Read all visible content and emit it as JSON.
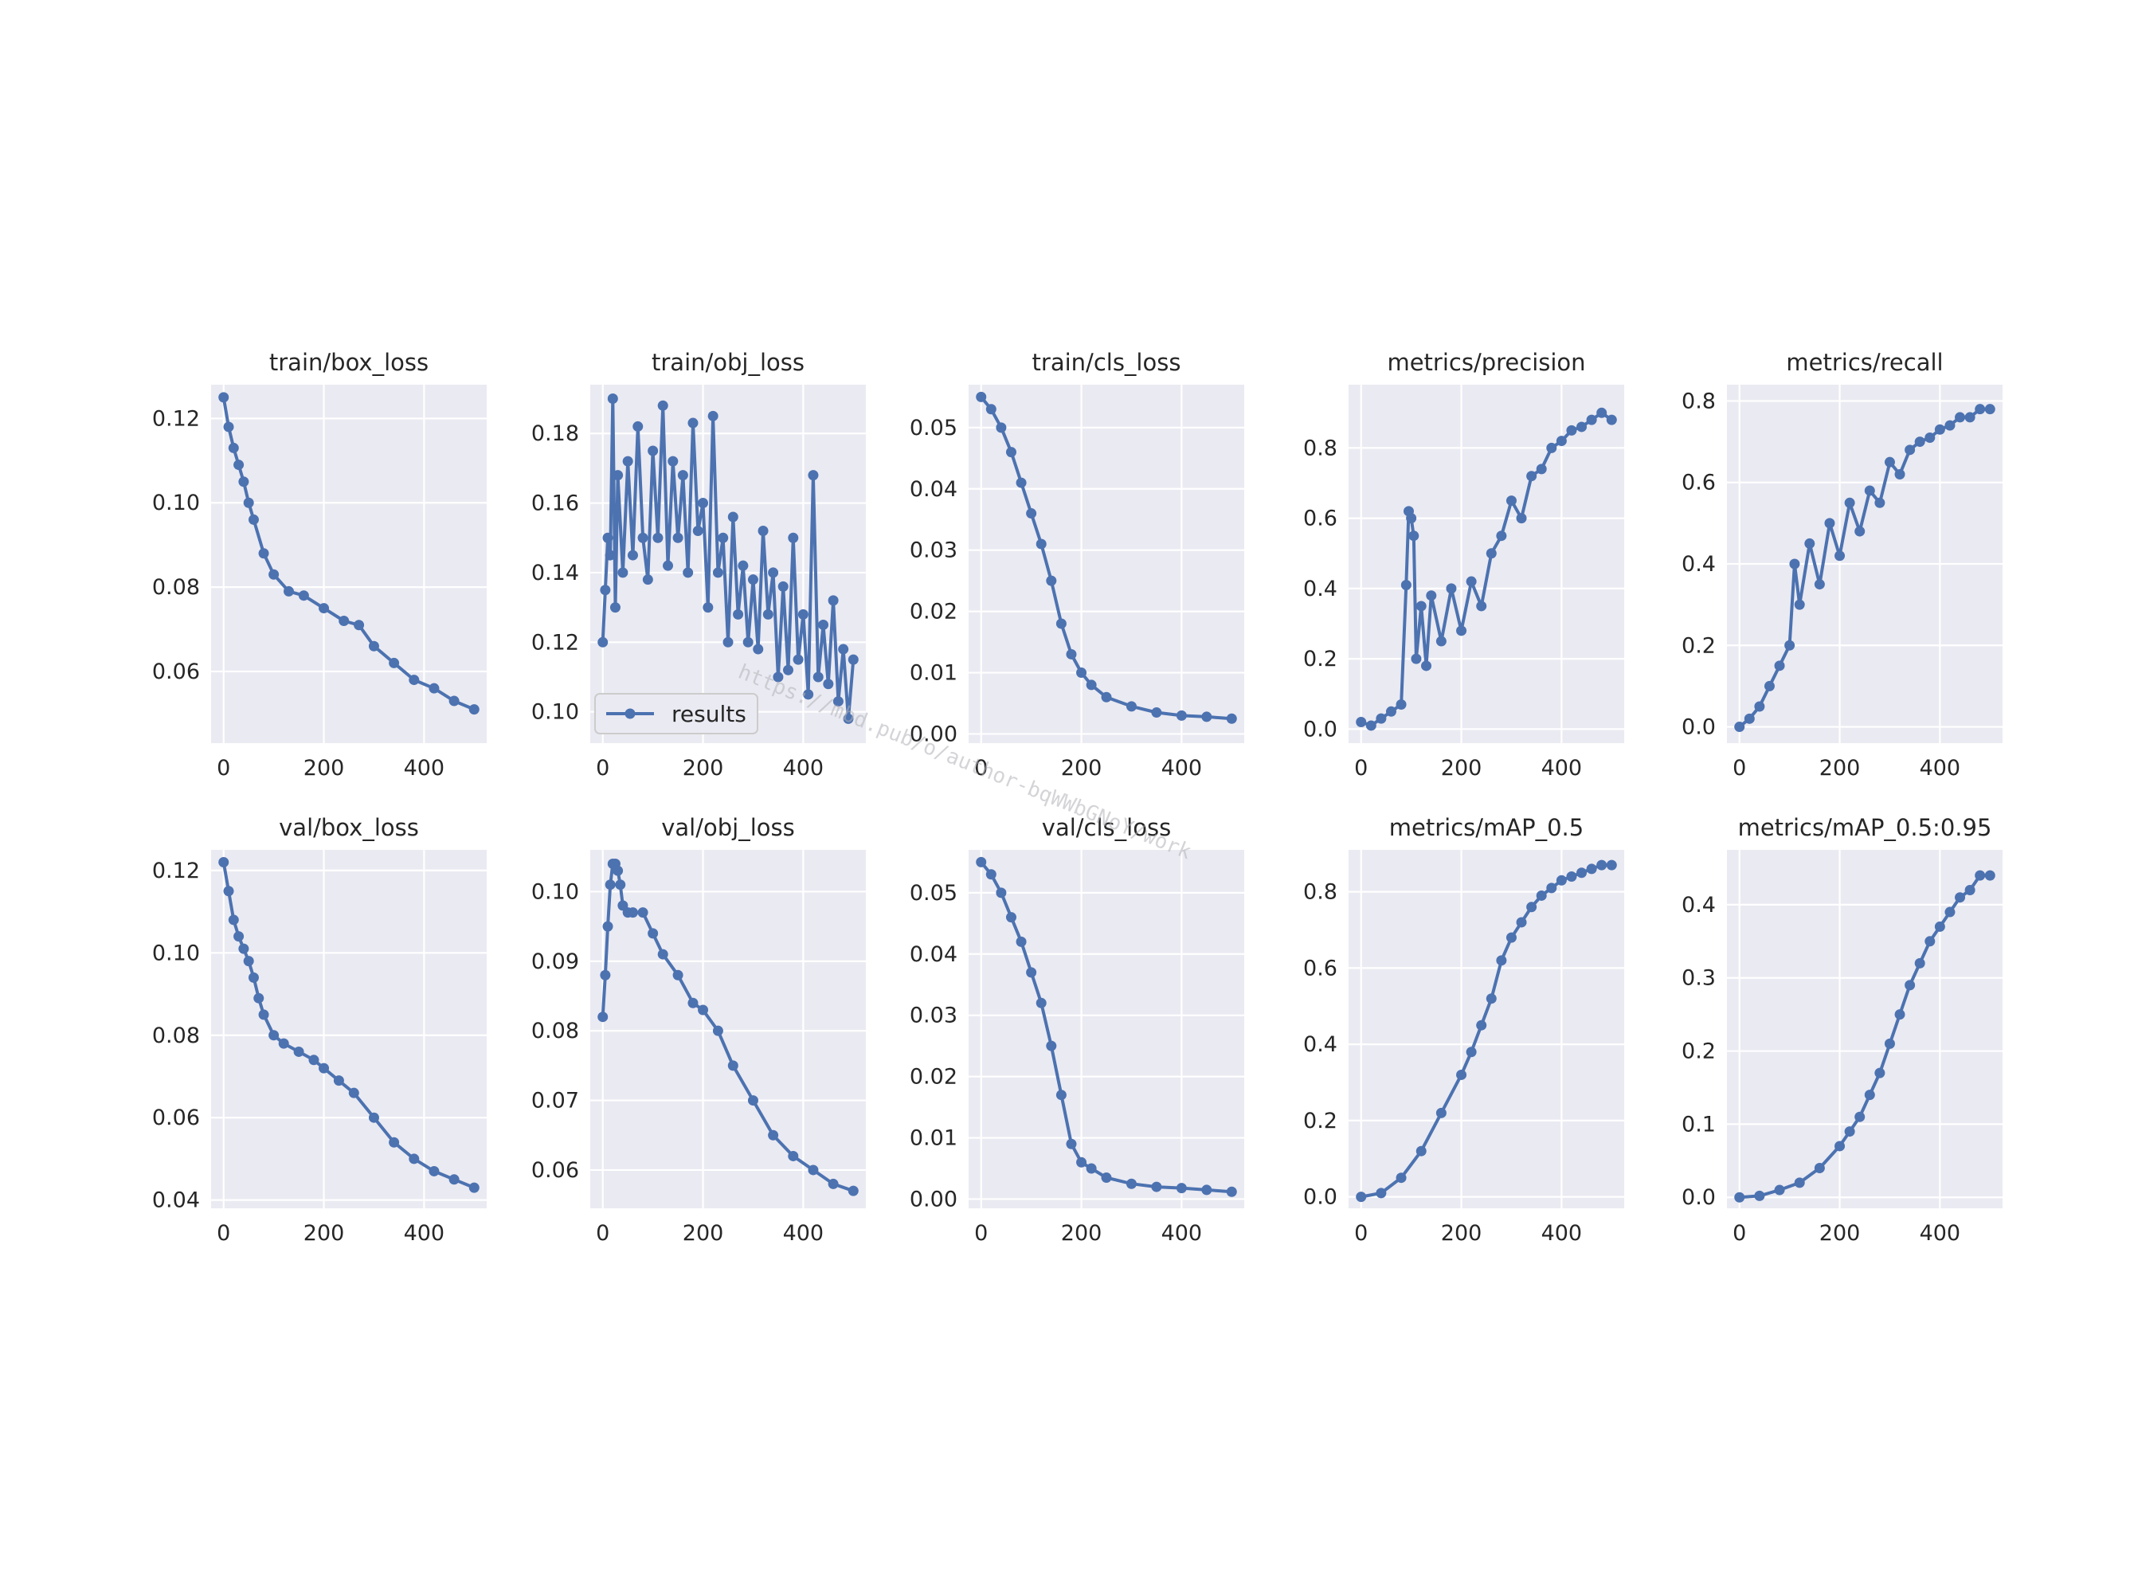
{
  "chart_data": [
    {
      "type": "line",
      "title": "train/box_loss",
      "x": [
        0,
        10,
        20,
        30,
        40,
        50,
        60,
        80,
        100,
        130,
        160,
        200,
        240,
        270,
        300,
        340,
        380,
        420,
        460,
        500
      ],
      "series": [
        {
          "name": "results",
          "values": [
            0.125,
            0.118,
            0.113,
            0.109,
            0.105,
            0.1,
            0.096,
            0.088,
            0.083,
            0.079,
            0.078,
            0.075,
            0.072,
            0.071,
            0.066,
            0.062,
            0.058,
            0.056,
            0.053,
            0.051
          ]
        }
      ],
      "xlim": [
        -25,
        525
      ],
      "ylim": [
        0.043,
        0.128
      ],
      "xticks": [
        0,
        200,
        400
      ],
      "xtick_labels": [
        "0",
        "200",
        "400"
      ],
      "yticks": [
        0.06,
        0.08,
        0.1,
        0.12
      ],
      "ytick_labels": [
        "0.06",
        "0.08",
        "0.10",
        "0.12"
      ],
      "grid": true
    },
    {
      "type": "line",
      "title": "train/obj_loss",
      "x": [
        0,
        5,
        10,
        15,
        20,
        25,
        30,
        40,
        50,
        60,
        70,
        80,
        90,
        100,
        110,
        120,
        130,
        140,
        150,
        160,
        170,
        180,
        190,
        200,
        210,
        220,
        230,
        240,
        250,
        260,
        270,
        280,
        290,
        300,
        310,
        320,
        330,
        340,
        350,
        360,
        370,
        380,
        390,
        400,
        410,
        420,
        430,
        440,
        450,
        460,
        470,
        480,
        490,
        500
      ],
      "series": [
        {
          "name": "results",
          "values": [
            0.12,
            0.135,
            0.15,
            0.145,
            0.19,
            0.13,
            0.168,
            0.14,
            0.172,
            0.145,
            0.182,
            0.15,
            0.138,
            0.175,
            0.15,
            0.188,
            0.142,
            0.172,
            0.15,
            0.168,
            0.14,
            0.183,
            0.152,
            0.16,
            0.13,
            0.185,
            0.14,
            0.15,
            0.12,
            0.156,
            0.128,
            0.142,
            0.12,
            0.138,
            0.118,
            0.152,
            0.128,
            0.14,
            0.11,
            0.136,
            0.112,
            0.15,
            0.115,
            0.128,
            0.105,
            0.168,
            0.11,
            0.125,
            0.108,
            0.132,
            0.103,
            0.118,
            0.098,
            0.115
          ]
        }
      ],
      "xlim": [
        -25,
        525
      ],
      "ylim": [
        0.091,
        0.194
      ],
      "xticks": [
        0,
        200,
        400
      ],
      "xtick_labels": [
        "0",
        "200",
        "400"
      ],
      "yticks": [
        0.1,
        0.12,
        0.14,
        0.16,
        0.18
      ],
      "ytick_labels": [
        "0.10",
        "0.12",
        "0.14",
        "0.16",
        "0.18"
      ],
      "grid": true,
      "legend": {
        "position": "lower-left",
        "label": "results"
      }
    },
    {
      "type": "line",
      "title": "train/cls_loss",
      "x": [
        0,
        20,
        40,
        60,
        80,
        100,
        120,
        140,
        160,
        180,
        200,
        220,
        250,
        300,
        350,
        400,
        450,
        500
      ],
      "series": [
        {
          "name": "results",
          "values": [
            0.055,
            0.053,
            0.05,
            0.046,
            0.041,
            0.036,
            0.031,
            0.025,
            0.018,
            0.013,
            0.01,
            0.008,
            0.006,
            0.0045,
            0.0035,
            0.003,
            0.0028,
            0.0025
          ]
        }
      ],
      "xlim": [
        -25,
        525
      ],
      "ylim": [
        -0.0015,
        0.057
      ],
      "xticks": [
        0,
        200,
        400
      ],
      "xtick_labels": [
        "0",
        "200",
        "400"
      ],
      "yticks": [
        0.0,
        0.01,
        0.02,
        0.03,
        0.04,
        0.05
      ],
      "ytick_labels": [
        "0.00",
        "0.01",
        "0.02",
        "0.03",
        "0.04",
        "0.05"
      ],
      "grid": true
    },
    {
      "type": "line",
      "title": "metrics/precision",
      "x": [
        0,
        20,
        40,
        60,
        80,
        90,
        95,
        100,
        105,
        110,
        120,
        130,
        140,
        160,
        180,
        200,
        220,
        240,
        260,
        280,
        300,
        320,
        340,
        360,
        380,
        400,
        420,
        440,
        460,
        480,
        500
      ],
      "series": [
        {
          "name": "results",
          "values": [
            0.02,
            0.01,
            0.03,
            0.05,
            0.07,
            0.41,
            0.62,
            0.6,
            0.55,
            0.2,
            0.35,
            0.18,
            0.38,
            0.25,
            0.4,
            0.28,
            0.42,
            0.35,
            0.5,
            0.55,
            0.65,
            0.6,
            0.72,
            0.74,
            0.8,
            0.82,
            0.85,
            0.86,
            0.88,
            0.9,
            0.88
          ]
        }
      ],
      "xlim": [
        -25,
        525
      ],
      "ylim": [
        -0.04,
        0.98
      ],
      "xticks": [
        0,
        200,
        400
      ],
      "xtick_labels": [
        "0",
        "200",
        "400"
      ],
      "yticks": [
        0.0,
        0.2,
        0.4,
        0.6,
        0.8
      ],
      "ytick_labels": [
        "0.0",
        "0.2",
        "0.4",
        "0.6",
        "0.8"
      ],
      "grid": true
    },
    {
      "type": "line",
      "title": "metrics/recall",
      "x": [
        0,
        20,
        40,
        60,
        80,
        100,
        110,
        120,
        140,
        160,
        180,
        200,
        220,
        240,
        260,
        280,
        300,
        320,
        340,
        360,
        380,
        400,
        420,
        440,
        460,
        480,
        500
      ],
      "series": [
        {
          "name": "results",
          "values": [
            0.0,
            0.02,
            0.05,
            0.1,
            0.15,
            0.2,
            0.4,
            0.3,
            0.45,
            0.35,
            0.5,
            0.42,
            0.55,
            0.48,
            0.58,
            0.55,
            0.65,
            0.62,
            0.68,
            0.7,
            0.71,
            0.73,
            0.74,
            0.76,
            0.76,
            0.78,
            0.78
          ]
        }
      ],
      "xlim": [
        -25,
        525
      ],
      "ylim": [
        -0.04,
        0.84
      ],
      "xticks": [
        0,
        200,
        400
      ],
      "xtick_labels": [
        "0",
        "200",
        "400"
      ],
      "yticks": [
        0.0,
        0.2,
        0.4,
        0.6,
        0.8
      ],
      "ytick_labels": [
        "0.0",
        "0.2",
        "0.4",
        "0.6",
        "0.8"
      ],
      "grid": true
    },
    {
      "type": "line",
      "title": "val/box_loss",
      "x": [
        0,
        10,
        20,
        30,
        40,
        50,
        60,
        70,
        80,
        100,
        120,
        150,
        180,
        200,
        230,
        260,
        300,
        340,
        380,
        420,
        460,
        500
      ],
      "series": [
        {
          "name": "results",
          "values": [
            0.122,
            0.115,
            0.108,
            0.104,
            0.101,
            0.098,
            0.094,
            0.089,
            0.085,
            0.08,
            0.078,
            0.076,
            0.074,
            0.072,
            0.069,
            0.066,
            0.06,
            0.054,
            0.05,
            0.047,
            0.045,
            0.043
          ]
        }
      ],
      "xlim": [
        -25,
        525
      ],
      "ylim": [
        0.038,
        0.125
      ],
      "xticks": [
        0,
        200,
        400
      ],
      "xtick_labels": [
        "0",
        "200",
        "400"
      ],
      "yticks": [
        0.04,
        0.06,
        0.08,
        0.1,
        0.12
      ],
      "ytick_labels": [
        "0.04",
        "0.06",
        "0.08",
        "0.10",
        "0.12"
      ],
      "grid": true
    },
    {
      "type": "line",
      "title": "val/obj_loss",
      "x": [
        0,
        5,
        10,
        15,
        20,
        25,
        30,
        35,
        40,
        50,
        60,
        80,
        100,
        120,
        150,
        180,
        200,
        230,
        260,
        300,
        340,
        380,
        420,
        460,
        500
      ],
      "series": [
        {
          "name": "results",
          "values": [
            0.082,
            0.088,
            0.095,
            0.101,
            0.104,
            0.104,
            0.103,
            0.101,
            0.098,
            0.097,
            0.097,
            0.097,
            0.094,
            0.091,
            0.088,
            0.084,
            0.083,
            0.08,
            0.075,
            0.07,
            0.065,
            0.062,
            0.06,
            0.058,
            0.057
          ]
        }
      ],
      "xlim": [
        -25,
        525
      ],
      "ylim": [
        0.0545,
        0.106
      ],
      "xticks": [
        0,
        200,
        400
      ],
      "xtick_labels": [
        "0",
        "200",
        "400"
      ],
      "yticks": [
        0.06,
        0.07,
        0.08,
        0.09,
        0.1
      ],
      "ytick_labels": [
        "0.06",
        "0.07",
        "0.08",
        "0.09",
        "0.10"
      ],
      "grid": true
    },
    {
      "type": "line",
      "title": "val/cls_loss",
      "x": [
        0,
        20,
        40,
        60,
        80,
        100,
        120,
        140,
        160,
        180,
        200,
        220,
        250,
        300,
        350,
        400,
        450,
        500
      ],
      "series": [
        {
          "name": "results",
          "values": [
            0.055,
            0.053,
            0.05,
            0.046,
            0.042,
            0.037,
            0.032,
            0.025,
            0.017,
            0.009,
            0.006,
            0.005,
            0.0035,
            0.0025,
            0.002,
            0.0018,
            0.0015,
            0.0012
          ]
        }
      ],
      "xlim": [
        -25,
        525
      ],
      "ylim": [
        -0.0015,
        0.057
      ],
      "xticks": [
        0,
        200,
        400
      ],
      "xtick_labels": [
        "0",
        "200",
        "400"
      ],
      "yticks": [
        0.0,
        0.01,
        0.02,
        0.03,
        0.04,
        0.05
      ],
      "ytick_labels": [
        "0.00",
        "0.01",
        "0.02",
        "0.03",
        "0.04",
        "0.05"
      ],
      "grid": true
    },
    {
      "type": "line",
      "title": "metrics/mAP_0.5",
      "x": [
        0,
        40,
        80,
        120,
        160,
        200,
        220,
        240,
        260,
        280,
        300,
        320,
        340,
        360,
        380,
        400,
        420,
        440,
        460,
        480,
        500
      ],
      "series": [
        {
          "name": "results",
          "values": [
            0.0,
            0.01,
            0.05,
            0.12,
            0.22,
            0.32,
            0.38,
            0.45,
            0.52,
            0.62,
            0.68,
            0.72,
            0.76,
            0.79,
            0.81,
            0.83,
            0.84,
            0.85,
            0.86,
            0.87,
            0.87
          ]
        }
      ],
      "xlim": [
        -25,
        525
      ],
      "ylim": [
        -0.03,
        0.91
      ],
      "xticks": [
        0,
        200,
        400
      ],
      "xtick_labels": [
        "0",
        "200",
        "400"
      ],
      "yticks": [
        0.0,
        0.2,
        0.4,
        0.6,
        0.8
      ],
      "ytick_labels": [
        "0.0",
        "0.2",
        "0.4",
        "0.6",
        "0.8"
      ],
      "grid": true
    },
    {
      "type": "line",
      "title": "metrics/mAP_0.5:0.95",
      "x": [
        0,
        40,
        80,
        120,
        160,
        200,
        220,
        240,
        260,
        280,
        300,
        320,
        340,
        360,
        380,
        400,
        420,
        440,
        460,
        480,
        500
      ],
      "series": [
        {
          "name": "results",
          "values": [
            0.0,
            0.002,
            0.01,
            0.02,
            0.04,
            0.07,
            0.09,
            0.11,
            0.14,
            0.17,
            0.21,
            0.25,
            0.29,
            0.32,
            0.35,
            0.37,
            0.39,
            0.41,
            0.42,
            0.44,
            0.44
          ]
        }
      ],
      "xlim": [
        -25,
        525
      ],
      "ylim": [
        -0.015,
        0.475
      ],
      "xticks": [
        0,
        200,
        400
      ],
      "xtick_labels": [
        "0",
        "200",
        "400"
      ],
      "yticks": [
        0.0,
        0.1,
        0.2,
        0.3,
        0.4
      ],
      "ytick_labels": [
        "0.0",
        "0.1",
        "0.2",
        "0.3",
        "0.4"
      ],
      "grid": true
    }
  ],
  "colors": {
    "line": "#4c72b0",
    "axes_background": "#eaeaf2",
    "grid": "#ffffff",
    "text": "#262626"
  },
  "watermark": {
    "text": "https://mbd.pub/o/author-bqWWbGNoY/work"
  }
}
